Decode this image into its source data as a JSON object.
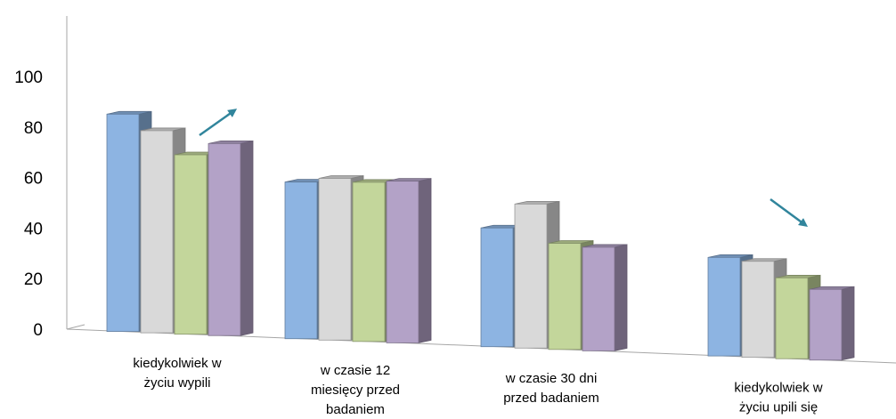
{
  "chart_data": {
    "type": "bar",
    "categories": [
      [
        "kiedykolwiek w",
        "życiu wypili"
      ],
      [
        "w czasie 12",
        "miesięcy przed",
        "badaniem"
      ],
      [
        "w czasie 30 dni",
        "przed badaniem"
      ],
      [
        "kiedykolwiek w",
        "życiu upili się"
      ]
    ],
    "series": [
      {
        "color": "#8db4e2",
        "values": [
          86,
          62,
          47,
          39
        ]
      },
      {
        "color": "#d9d9d9",
        "values": [
          80,
          64,
          57,
          38
        ]
      },
      {
        "color": "#c3d69b",
        "values": [
          71,
          63,
          42,
          32
        ]
      },
      {
        "color": "#b3a2c7",
        "values": [
          76,
          64,
          41,
          28
        ]
      }
    ],
    "y_ticks": [
      "0",
      "20",
      "40",
      "60",
      "80",
      "100"
    ],
    "ylim": [
      0,
      100
    ],
    "grid": false,
    "legend": "none",
    "annotations": [
      {
        "type": "arrow-up",
        "category": 0,
        "color": "#31859c"
      },
      {
        "type": "arrow-down",
        "category": 3,
        "color": "#31859c"
      }
    ]
  }
}
